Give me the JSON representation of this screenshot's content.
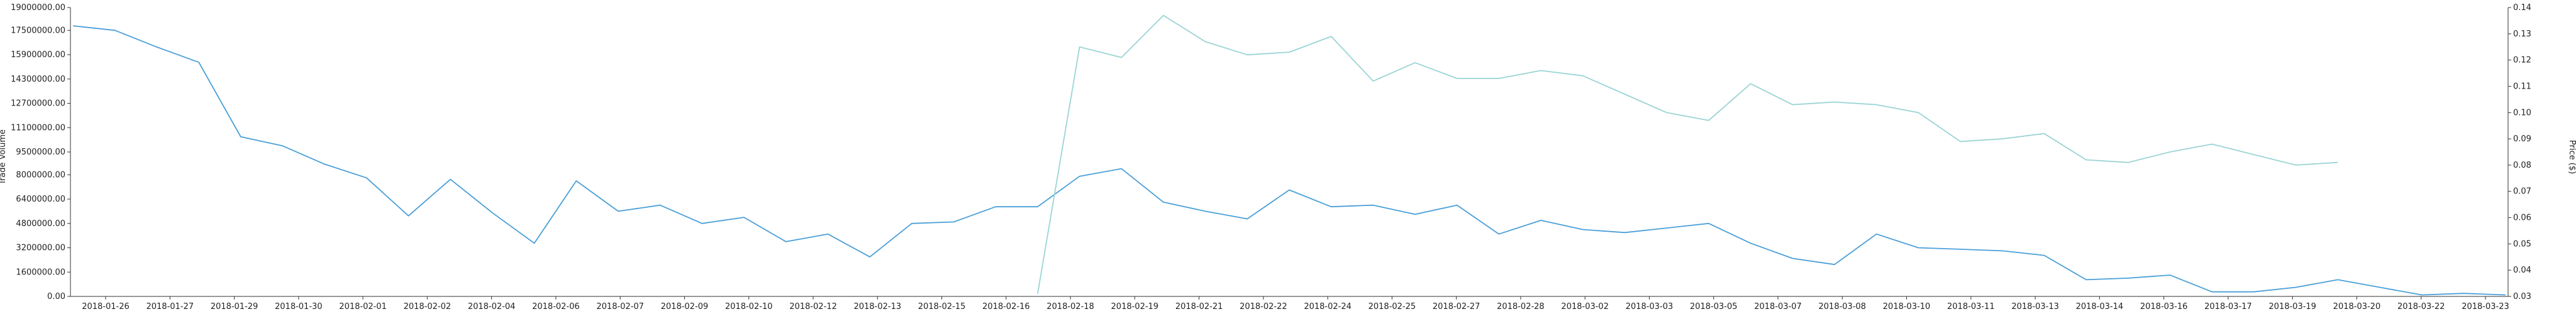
{
  "chart_data": {
    "type": "line",
    "y_left": {
      "label": "Trade Volume",
      "ylim": [
        0,
        19000000
      ],
      "ticks": [
        "0.00",
        "1600000.00",
        "3200000.00",
        "4800000.00",
        "6400000.00",
        "8000000.00",
        "9500000.00",
        "11100000.00",
        "12700000.00",
        "14300000.00",
        "15900000.00",
        "17500000.00",
        "19000000.00"
      ]
    },
    "y_right": {
      "label": "Price ($)",
      "ylim": [
        0.03,
        0.14
      ],
      "ticks": [
        "0.03",
        "0.04",
        "0.05",
        "0.06",
        "0.07",
        "0.08",
        "0.09",
        "0.10",
        "0.11",
        "0.12",
        "0.13",
        "0.14"
      ]
    },
    "x_labels": [
      "2018-01-26",
      "2018-01-27",
      "2018-01-29",
      "2018-01-30",
      "2018-02-01",
      "2018-02-02",
      "2018-02-04",
      "2018-02-06",
      "2018-02-07",
      "2018-02-09",
      "2018-02-10",
      "2018-02-12",
      "2018-02-13",
      "2018-02-15",
      "2018-02-16",
      "2018-02-18",
      "2018-02-19",
      "2018-02-21",
      "2018-02-22",
      "2018-02-24",
      "2018-02-25",
      "2018-02-27",
      "2018-02-28",
      "2018-03-02",
      "2018-03-03",
      "2018-03-05",
      "2018-03-07",
      "2018-03-08",
      "2018-03-10",
      "2018-03-11",
      "2018-03-13",
      "2018-03-14",
      "2018-03-16",
      "2018-03-17",
      "2018-03-19",
      "2018-03-20",
      "2018-03-22",
      "2018-03-23"
    ],
    "series": [
      {
        "name": "Trade Volume",
        "axis": "left",
        "color": "#4a9fd8",
        "values": [
          17800000,
          17500000,
          16400000,
          15400000,
          10500000,
          9900000,
          8700000,
          7800000,
          5300000,
          7700000,
          5500000,
          3500000,
          7600000,
          5600000,
          6000000,
          4800000,
          5200000,
          3600000,
          4100000,
          2600000,
          4800000,
          4900000,
          5900000,
          5900000,
          7900000,
          8400000,
          6200000,
          5600000,
          5100000,
          7000000,
          5900000,
          6000000,
          5400000,
          6000000,
          4100000,
          5000000,
          4400000,
          4200000,
          4500000,
          4800000,
          3500000,
          2500000,
          2100000,
          4100000,
          3200000,
          3100000,
          3000000,
          2700000,
          1100000,
          1200000,
          1400000,
          300000,
          300000,
          600000,
          1100000,
          600000,
          100000,
          200000,
          100000
        ]
      },
      {
        "name": "Price ($)",
        "axis": "right",
        "color": "#9bd4d4",
        "start_index": 23,
        "values": [
          0.031,
          0.125,
          0.121,
          0.137,
          0.127,
          0.122,
          0.123,
          0.129,
          0.112,
          0.119,
          0.113,
          0.113,
          0.116,
          0.114,
          0.107,
          0.1,
          0.097,
          0.111,
          0.103,
          0.104,
          0.103,
          0.1,
          0.089,
          0.09,
          0.092,
          0.082,
          0.081,
          0.085,
          0.088,
          0.084,
          0.08,
          0.081
        ]
      }
    ],
    "grid": false,
    "legend": "none"
  }
}
